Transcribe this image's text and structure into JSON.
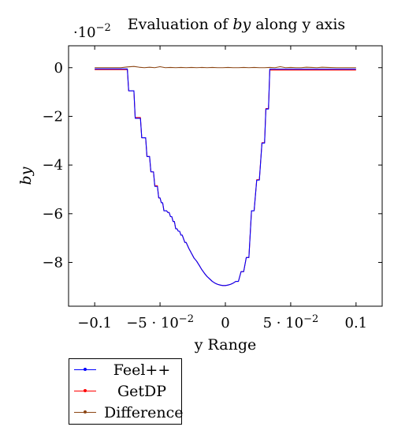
{
  "chart_data": {
    "type": "line",
    "title_prefix": "Evaluation of ",
    "title_var": "by",
    "title_suffix": " along y axis",
    "xlabel": "y Range",
    "ylabel": "by",
    "y_scale_label": "·10",
    "y_scale_exp": "−2",
    "xlim": [
      -0.12,
      0.12
    ],
    "ylim": [
      -9.8,
      0.9
    ],
    "x_ticks": [
      {
        "value": -0.1,
        "label": "−0.1"
      },
      {
        "value": -0.05,
        "label_mant": "−5 · 10",
        "label_exp": "−2"
      },
      {
        "value": 0,
        "label": "0"
      },
      {
        "value": 0.05,
        "label_mant": "5 · 10",
        "label_exp": "−2"
      },
      {
        "value": 0.1,
        "label": "0.1"
      }
    ],
    "y_ticks": [
      {
        "value": 0,
        "label": "0"
      },
      {
        "value": -2,
        "label": "−2"
      },
      {
        "value": -4,
        "label": "−4"
      },
      {
        "value": -6,
        "label": "−6"
      },
      {
        "value": -8,
        "label": "−8"
      }
    ],
    "series": [
      {
        "name": "Feel++",
        "color": "#0000ff",
        "x": [
          -0.1,
          -0.075,
          -0.074,
          -0.07,
          -0.069,
          -0.065,
          -0.064,
          -0.061,
          -0.06,
          -0.058,
          -0.057,
          -0.055,
          -0.054,
          -0.052,
          -0.051,
          -0.05,
          -0.049,
          -0.048,
          -0.047,
          -0.045,
          -0.044,
          -0.043,
          -0.042,
          -0.041,
          -0.04,
          -0.039,
          -0.038,
          -0.037,
          -0.036,
          -0.035,
          -0.034,
          -0.033,
          -0.031,
          -0.03,
          -0.028,
          -0.026,
          -0.024,
          -0.022,
          -0.02,
          -0.018,
          -0.016,
          -0.014,
          -0.012,
          -0.01,
          -0.008,
          -0.006,
          -0.004,
          -0.002,
          0.0,
          0.002,
          0.004,
          0.006,
          0.008,
          0.01,
          0.012,
          0.014,
          0.016,
          0.018,
          0.02,
          0.022,
          0.024,
          0.026,
          0.028,
          0.03,
          0.031,
          0.033,
          0.034,
          0.036,
          0.037,
          0.039,
          0.04,
          0.043,
          0.044,
          0.049,
          0.05,
          0.055,
          0.056,
          0.063,
          0.064,
          0.07,
          0.071,
          0.076,
          0.077,
          0.1
        ],
        "y": [
          -0.05,
          -0.05,
          -0.95,
          -0.95,
          -2.08,
          -2.08,
          -2.88,
          -2.88,
          -3.65,
          -3.65,
          -4.28,
          -4.28,
          -4.88,
          -4.88,
          -5.35,
          -5.35,
          -5.55,
          -5.55,
          -5.88,
          -5.88,
          -5.95,
          -5.95,
          -6.12,
          -6.12,
          -6.32,
          -6.32,
          -6.62,
          -6.62,
          -6.72,
          -6.72,
          -6.88,
          -6.88,
          -7.18,
          -7.18,
          -7.42,
          -7.62,
          -7.82,
          -7.95,
          -8.12,
          -8.3,
          -8.45,
          -8.58,
          -8.68,
          -8.78,
          -8.85,
          -8.9,
          -8.93,
          -8.95,
          -8.95,
          -8.93,
          -8.9,
          -8.85,
          -8.78,
          -8.78,
          -8.38,
          -8.38,
          -7.8,
          -7.8,
          -5.88,
          -5.88,
          -4.62,
          -4.62,
          -3.1,
          -3.1,
          -1.7,
          -1.7,
          -0.06,
          -0.06,
          -0.06,
          -0.06,
          -0.06,
          -0.06,
          -0.06,
          -0.06,
          -0.06,
          -0.06,
          -0.06,
          -0.06,
          -0.06,
          -0.06,
          -0.06,
          -0.06,
          -0.06,
          -0.06
        ]
      },
      {
        "name": "GetDP",
        "color": "#ff0000",
        "x": [
          -0.1,
          -0.075,
          -0.074,
          -0.07,
          -0.069,
          -0.065,
          -0.064,
          -0.061,
          -0.06,
          -0.058,
          -0.057,
          -0.055,
          -0.054,
          -0.052,
          -0.051,
          -0.05,
          -0.049,
          -0.048,
          -0.047,
          -0.045,
          -0.044,
          -0.043,
          -0.042,
          -0.041,
          -0.04,
          -0.039,
          -0.038,
          -0.037,
          -0.036,
          -0.035,
          -0.034,
          -0.033,
          -0.031,
          -0.03,
          -0.028,
          -0.026,
          -0.024,
          -0.022,
          -0.02,
          -0.018,
          -0.016,
          -0.014,
          -0.012,
          -0.01,
          -0.008,
          -0.006,
          -0.004,
          -0.002,
          0.0,
          0.002,
          0.004,
          0.006,
          0.008,
          0.01,
          0.012,
          0.014,
          0.016,
          0.018,
          0.02,
          0.022,
          0.024,
          0.026,
          0.028,
          0.03,
          0.031,
          0.033,
          0.034,
          0.036,
          0.037,
          0.039,
          0.04,
          0.043,
          0.044,
          0.049,
          0.05,
          0.055,
          0.056,
          0.063,
          0.064,
          0.07,
          0.071,
          0.076,
          0.077,
          0.1
        ],
        "y": [
          -0.08,
          -0.08,
          -0.95,
          -0.95,
          -2.05,
          -2.05,
          -2.88,
          -2.88,
          -3.65,
          -3.65,
          -4.28,
          -4.28,
          -4.85,
          -4.85,
          -5.35,
          -5.35,
          -5.55,
          -5.55,
          -5.88,
          -5.88,
          -5.95,
          -5.95,
          -6.12,
          -6.12,
          -6.32,
          -6.32,
          -6.62,
          -6.62,
          -6.72,
          -6.72,
          -6.88,
          -6.88,
          -7.18,
          -7.18,
          -7.42,
          -7.62,
          -7.82,
          -7.95,
          -8.12,
          -8.3,
          -8.45,
          -8.58,
          -8.68,
          -8.78,
          -8.85,
          -8.9,
          -8.93,
          -8.95,
          -8.95,
          -8.93,
          -8.9,
          -8.85,
          -8.78,
          -8.78,
          -8.38,
          -8.38,
          -7.8,
          -7.8,
          -5.88,
          -5.88,
          -4.6,
          -4.6,
          -3.08,
          -3.08,
          -1.68,
          -1.68,
          -0.1,
          -0.1,
          -0.1,
          -0.1,
          -0.1,
          -0.1,
          -0.1,
          -0.1,
          -0.1,
          -0.1,
          -0.1,
          -0.1,
          -0.1,
          -0.1,
          -0.1,
          -0.1,
          -0.1,
          -0.1
        ]
      },
      {
        "name": "Difference",
        "color": "#8b4513",
        "x": [
          -0.1,
          -0.08,
          -0.075,
          -0.07,
          -0.066,
          -0.062,
          -0.058,
          -0.054,
          -0.05,
          -0.046,
          -0.042,
          -0.038,
          -0.034,
          -0.03,
          -0.026,
          -0.022,
          -0.018,
          -0.014,
          -0.01,
          -0.006,
          -0.002,
          0.002,
          0.006,
          0.01,
          0.014,
          0.018,
          0.022,
          0.026,
          0.03,
          0.034,
          0.038,
          0.042,
          0.046,
          0.05,
          0.054,
          0.058,
          0.062,
          0.066,
          0.07,
          0.074,
          0.078,
          0.085,
          0.09,
          0.1
        ],
        "y": [
          0.0,
          0.0,
          0.03,
          0.05,
          0.02,
          0.0,
          0.02,
          0.0,
          0.04,
          0.0,
          0.01,
          0.0,
          0.01,
          0.0,
          0.01,
          0.0,
          0.01,
          0.0,
          0.01,
          0.0,
          0.0,
          0.01,
          0.0,
          0.0,
          0.01,
          0.0,
          0.01,
          0.0,
          0.0,
          0.01,
          0.0,
          0.04,
          0.0,
          0.01,
          0.0,
          0.0,
          0.02,
          0.01,
          0.0,
          0.02,
          0.01,
          0.0,
          0.0,
          0.0
        ]
      }
    ]
  }
}
